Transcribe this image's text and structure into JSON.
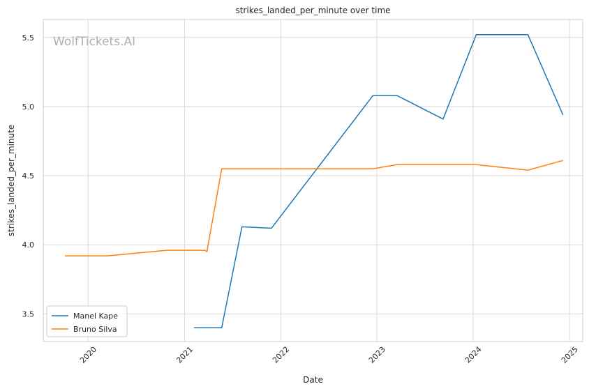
{
  "chart_data": {
    "type": "line",
    "title": "strikes_landed_per_minute over time",
    "xlabel": "Date",
    "ylabel": "strikes_landed_per_minute",
    "watermark": "WolfTickets.AI",
    "x_ticks": [
      "2020",
      "2021",
      "2022",
      "2023",
      "2024",
      "2025"
    ],
    "y_ticks": [
      "3.5",
      "4.0",
      "4.5",
      "5.0",
      "5.5"
    ],
    "xlim": [
      "2019-07-15",
      "2025-02-20"
    ],
    "ylim": [
      3.3,
      5.63
    ],
    "grid": true,
    "legend_position": "lower-left",
    "series": [
      {
        "name": "Manel Kape",
        "color": "#1f77b4",
        "points": [
          {
            "x": "2021-02-06",
            "y": 3.4
          },
          {
            "x": "2021-05-22",
            "y": 3.4
          },
          {
            "x": "2021-08-07",
            "y": 4.13
          },
          {
            "x": "2021-11-27",
            "y": 4.12
          },
          {
            "x": "2022-12-17",
            "y": 5.08
          },
          {
            "x": "2023-03-18",
            "y": 5.08
          },
          {
            "x": "2023-09-09",
            "y": 4.91
          },
          {
            "x": "2024-01-13",
            "y": 5.52
          },
          {
            "x": "2024-07-27",
            "y": 5.52
          },
          {
            "x": "2024-12-07",
            "y": 4.94
          }
        ]
      },
      {
        "name": "Bruno Silva",
        "color": "#ff7f0e",
        "points": [
          {
            "x": "2019-10-05",
            "y": 3.92
          },
          {
            "x": "2020-03-14",
            "y": 3.92
          },
          {
            "x": "2020-10-24",
            "y": 3.96
          },
          {
            "x": "2021-03-20",
            "y": 3.96
          },
          {
            "x": "2021-03-27",
            "y": 3.95
          },
          {
            "x": "2021-05-22",
            "y": 4.55
          },
          {
            "x": "2022-12-17",
            "y": 4.55
          },
          {
            "x": "2023-03-18",
            "y": 4.58
          },
          {
            "x": "2024-01-13",
            "y": 4.58
          },
          {
            "x": "2024-07-27",
            "y": 4.54
          },
          {
            "x": "2024-12-07",
            "y": 4.61
          }
        ]
      }
    ]
  }
}
